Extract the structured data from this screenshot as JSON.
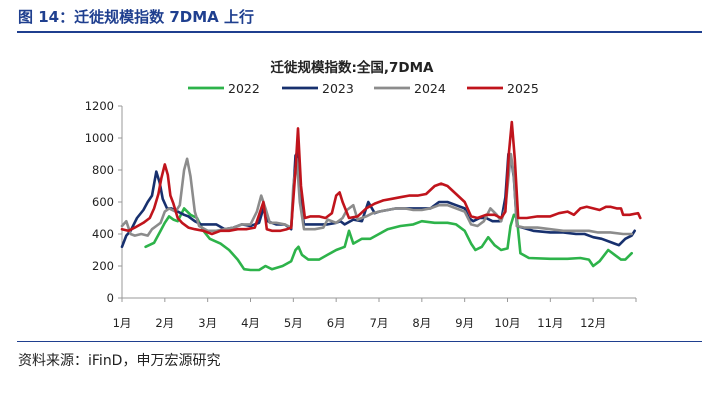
{
  "header": {
    "figure_title": "图 14：迁徙规模指数 7DMA 上行",
    "source": "资料来源：iFinD，申万宏源研究"
  },
  "chart_data": {
    "type": "line",
    "title": "迁徙规模指数:全国,7DMA",
    "xlabel": "",
    "ylabel": "",
    "x_tick_labels": [
      "1月",
      "2月",
      "3月",
      "4月",
      "5月",
      "6月",
      "7月",
      "8月",
      "9月",
      "10月",
      "11月",
      "12月"
    ],
    "ylim": [
      0,
      1200
    ],
    "yticks": [
      0,
      200,
      400,
      600,
      800,
      1000,
      1200
    ],
    "grid": false,
    "legend_position": "top",
    "series": [
      {
        "name": "2022",
        "color": "#2db34a",
        "points": [
          [
            1.55,
            320
          ],
          [
            1.75,
            345
          ],
          [
            1.9,
            420
          ],
          [
            2.0,
            470
          ],
          [
            2.1,
            510
          ],
          [
            2.2,
            490
          ],
          [
            2.3,
            480
          ],
          [
            2.45,
            560
          ],
          [
            2.6,
            520
          ],
          [
            2.75,
            500
          ],
          [
            2.9,
            420
          ],
          [
            3.05,
            370
          ],
          [
            3.3,
            340
          ],
          [
            3.5,
            300
          ],
          [
            3.7,
            240
          ],
          [
            3.85,
            180
          ],
          [
            4.0,
            175
          ],
          [
            4.2,
            175
          ],
          [
            4.35,
            200
          ],
          [
            4.5,
            180
          ],
          [
            4.75,
            200
          ],
          [
            4.95,
            230
          ],
          [
            5.05,
            300
          ],
          [
            5.12,
            320
          ],
          [
            5.2,
            270
          ],
          [
            5.35,
            240
          ],
          [
            5.6,
            240
          ],
          [
            5.8,
            270
          ],
          [
            6.0,
            300
          ],
          [
            6.2,
            320
          ],
          [
            6.3,
            420
          ],
          [
            6.4,
            340
          ],
          [
            6.6,
            370
          ],
          [
            6.8,
            370
          ],
          [
            7.0,
            400
          ],
          [
            7.2,
            430
          ],
          [
            7.5,
            450
          ],
          [
            7.8,
            460
          ],
          [
            8.0,
            480
          ],
          [
            8.3,
            470
          ],
          [
            8.6,
            470
          ],
          [
            8.8,
            460
          ],
          [
            9.0,
            420
          ],
          [
            9.15,
            340
          ],
          [
            9.25,
            300
          ],
          [
            9.4,
            320
          ],
          [
            9.55,
            380
          ],
          [
            9.7,
            330
          ],
          [
            9.85,
            300
          ],
          [
            10.0,
            310
          ],
          [
            10.07,
            450
          ],
          [
            10.15,
            520
          ],
          [
            10.22,
            500
          ],
          [
            10.3,
            280
          ],
          [
            10.5,
            250
          ],
          [
            11.0,
            245
          ],
          [
            11.4,
            245
          ],
          [
            11.7,
            250
          ],
          [
            11.9,
            240
          ],
          [
            12.0,
            200
          ],
          [
            12.15,
            230
          ],
          [
            12.35,
            300
          ],
          [
            12.5,
            270
          ],
          [
            12.65,
            240
          ],
          [
            12.75,
            240
          ],
          [
            12.9,
            280
          ]
        ]
      },
      {
        "name": "2023",
        "color": "#17306e",
        "points": [
          [
            1.0,
            320
          ],
          [
            1.1,
            390
          ],
          [
            1.2,
            420
          ],
          [
            1.35,
            500
          ],
          [
            1.5,
            550
          ],
          [
            1.6,
            600
          ],
          [
            1.7,
            640
          ],
          [
            1.8,
            790
          ],
          [
            1.88,
            720
          ],
          [
            1.95,
            620
          ],
          [
            2.05,
            560
          ],
          [
            2.15,
            560
          ],
          [
            2.3,
            540
          ],
          [
            2.45,
            520
          ],
          [
            2.55,
            510
          ],
          [
            2.7,
            480
          ],
          [
            2.85,
            460
          ],
          [
            3.0,
            460
          ],
          [
            3.2,
            460
          ],
          [
            3.4,
            430
          ],
          [
            3.6,
            440
          ],
          [
            3.8,
            460
          ],
          [
            4.0,
            450
          ],
          [
            4.2,
            470
          ],
          [
            4.3,
            560
          ],
          [
            4.4,
            480
          ],
          [
            4.6,
            460
          ],
          [
            4.8,
            460
          ],
          [
            4.95,
            430
          ],
          [
            5.05,
            890
          ],
          [
            5.1,
            910
          ],
          [
            5.17,
            600
          ],
          [
            5.25,
            460
          ],
          [
            5.4,
            460
          ],
          [
            5.6,
            460
          ],
          [
            5.8,
            460
          ],
          [
            6.0,
            470
          ],
          [
            6.1,
            480
          ],
          [
            6.2,
            460
          ],
          [
            6.4,
            490
          ],
          [
            6.6,
            480
          ],
          [
            6.75,
            600
          ],
          [
            6.9,
            530
          ],
          [
            7.0,
            540
          ],
          [
            7.2,
            550
          ],
          [
            7.4,
            560
          ],
          [
            7.6,
            560
          ],
          [
            7.8,
            560
          ],
          [
            8.0,
            560
          ],
          [
            8.2,
            560
          ],
          [
            8.4,
            600
          ],
          [
            8.6,
            600
          ],
          [
            8.8,
            580
          ],
          [
            9.0,
            560
          ],
          [
            9.1,
            500
          ],
          [
            9.2,
            480
          ],
          [
            9.35,
            500
          ],
          [
            9.5,
            500
          ],
          [
            9.65,
            480
          ],
          [
            9.85,
            480
          ],
          [
            9.95,
            630
          ],
          [
            10.02,
            900
          ],
          [
            10.08,
            880
          ],
          [
            10.15,
            750
          ],
          [
            10.22,
            450
          ],
          [
            10.35,
            440
          ],
          [
            10.6,
            420
          ],
          [
            11.0,
            410
          ],
          [
            11.3,
            410
          ],
          [
            11.6,
            400
          ],
          [
            11.8,
            400
          ],
          [
            12.0,
            380
          ],
          [
            12.2,
            370
          ],
          [
            12.4,
            350
          ],
          [
            12.5,
            340
          ],
          [
            12.6,
            330
          ],
          [
            12.75,
            370
          ],
          [
            12.9,
            390
          ],
          [
            12.97,
            420
          ]
        ]
      },
      {
        "name": "2024",
        "color": "#8c8c8c",
        "points": [
          [
            1.0,
            450
          ],
          [
            1.1,
            480
          ],
          [
            1.2,
            400
          ],
          [
            1.3,
            390
          ],
          [
            1.45,
            400
          ],
          [
            1.6,
            390
          ],
          [
            1.7,
            430
          ],
          [
            1.8,
            450
          ],
          [
            1.9,
            470
          ],
          [
            2.0,
            540
          ],
          [
            2.1,
            560
          ],
          [
            2.25,
            540
          ],
          [
            2.35,
            580
          ],
          [
            2.45,
            800
          ],
          [
            2.52,
            870
          ],
          [
            2.6,
            760
          ],
          [
            2.7,
            540
          ],
          [
            2.8,
            450
          ],
          [
            3.0,
            420
          ],
          [
            3.2,
            420
          ],
          [
            3.4,
            430
          ],
          [
            3.6,
            440
          ],
          [
            3.8,
            460
          ],
          [
            4.0,
            460
          ],
          [
            4.15,
            540
          ],
          [
            4.25,
            640
          ],
          [
            4.35,
            560
          ],
          [
            4.45,
            470
          ],
          [
            4.6,
            470
          ],
          [
            4.8,
            460
          ],
          [
            4.95,
            440
          ],
          [
            5.0,
            700
          ],
          [
            5.08,
            870
          ],
          [
            5.15,
            600
          ],
          [
            5.25,
            430
          ],
          [
            5.5,
            430
          ],
          [
            5.7,
            440
          ],
          [
            5.8,
            490
          ],
          [
            6.0,
            470
          ],
          [
            6.15,
            500
          ],
          [
            6.25,
            550
          ],
          [
            6.4,
            580
          ],
          [
            6.5,
            490
          ],
          [
            6.7,
            510
          ],
          [
            6.85,
            530
          ],
          [
            7.0,
            540
          ],
          [
            7.2,
            550
          ],
          [
            7.4,
            560
          ],
          [
            7.6,
            560
          ],
          [
            7.8,
            550
          ],
          [
            8.0,
            550
          ],
          [
            8.2,
            560
          ],
          [
            8.4,
            580
          ],
          [
            8.6,
            580
          ],
          [
            8.8,
            560
          ],
          [
            9.0,
            540
          ],
          [
            9.15,
            460
          ],
          [
            9.3,
            450
          ],
          [
            9.45,
            480
          ],
          [
            9.6,
            560
          ],
          [
            9.75,
            520
          ],
          [
            9.85,
            480
          ],
          [
            9.95,
            560
          ],
          [
            10.02,
            750
          ],
          [
            10.08,
            900
          ],
          [
            10.15,
            760
          ],
          [
            10.22,
            450
          ],
          [
            10.4,
            440
          ],
          [
            10.7,
            440
          ],
          [
            11.0,
            430
          ],
          [
            11.3,
            420
          ],
          [
            11.6,
            420
          ],
          [
            11.9,
            420
          ],
          [
            12.1,
            410
          ],
          [
            12.4,
            410
          ],
          [
            12.7,
            400
          ],
          [
            12.9,
            400
          ]
        ]
      },
      {
        "name": "2025",
        "color": "#c0141c",
        "points": [
          [
            1.0,
            430
          ],
          [
            1.15,
            420
          ],
          [
            1.3,
            440
          ],
          [
            1.5,
            470
          ],
          [
            1.65,
            500
          ],
          [
            1.75,
            560
          ],
          [
            1.85,
            650
          ],
          [
            1.92,
            750
          ],
          [
            2.0,
            835
          ],
          [
            2.07,
            770
          ],
          [
            2.13,
            640
          ],
          [
            2.2,
            590
          ],
          [
            2.3,
            500
          ],
          [
            2.4,
            470
          ],
          [
            2.55,
            440
          ],
          [
            2.7,
            430
          ],
          [
            2.9,
            420
          ],
          [
            3.1,
            400
          ],
          [
            3.3,
            420
          ],
          [
            3.5,
            420
          ],
          [
            3.7,
            430
          ],
          [
            3.9,
            430
          ],
          [
            4.1,
            440
          ],
          [
            4.2,
            520
          ],
          [
            4.3,
            600
          ],
          [
            4.38,
            430
          ],
          [
            4.5,
            420
          ],
          [
            4.7,
            420
          ],
          [
            4.85,
            430
          ],
          [
            4.95,
            440
          ],
          [
            5.05,
            800
          ],
          [
            5.11,
            1060
          ],
          [
            5.18,
            700
          ],
          [
            5.27,
            500
          ],
          [
            5.4,
            510
          ],
          [
            5.6,
            510
          ],
          [
            5.75,
            500
          ],
          [
            5.9,
            530
          ],
          [
            6.0,
            640
          ],
          [
            6.08,
            660
          ],
          [
            6.15,
            600
          ],
          [
            6.3,
            500
          ],
          [
            6.5,
            510
          ],
          [
            6.7,
            560
          ],
          [
            6.9,
            590
          ],
          [
            7.1,
            610
          ],
          [
            7.3,
            620
          ],
          [
            7.5,
            630
          ],
          [
            7.7,
            640
          ],
          [
            7.9,
            640
          ],
          [
            8.1,
            650
          ],
          [
            8.3,
            700
          ],
          [
            8.45,
            715
          ],
          [
            8.6,
            700
          ],
          [
            8.8,
            650
          ],
          [
            9.0,
            600
          ],
          [
            9.15,
            510
          ],
          [
            9.3,
            500
          ],
          [
            9.5,
            520
          ],
          [
            9.7,
            520
          ],
          [
            9.85,
            500
          ],
          [
            9.95,
            540
          ],
          [
            10.03,
            900
          ],
          [
            10.1,
            1100
          ],
          [
            10.17,
            870
          ],
          [
            10.25,
            500
          ],
          [
            10.45,
            500
          ],
          [
            10.7,
            510
          ],
          [
            11.0,
            510
          ],
          [
            11.2,
            530
          ],
          [
            11.4,
            540
          ],
          [
            11.55,
            520
          ],
          [
            11.7,
            560
          ],
          [
            11.85,
            570
          ],
          [
            12.0,
            560
          ],
          [
            12.15,
            550
          ],
          [
            12.3,
            570
          ],
          [
            12.4,
            570
          ],
          [
            12.55,
            560
          ],
          [
            12.65,
            560
          ],
          [
            12.7,
            520
          ],
          [
            12.85,
            520
          ],
          [
            13.05,
            530
          ],
          [
            13.1,
            500
          ]
        ]
      }
    ]
  }
}
